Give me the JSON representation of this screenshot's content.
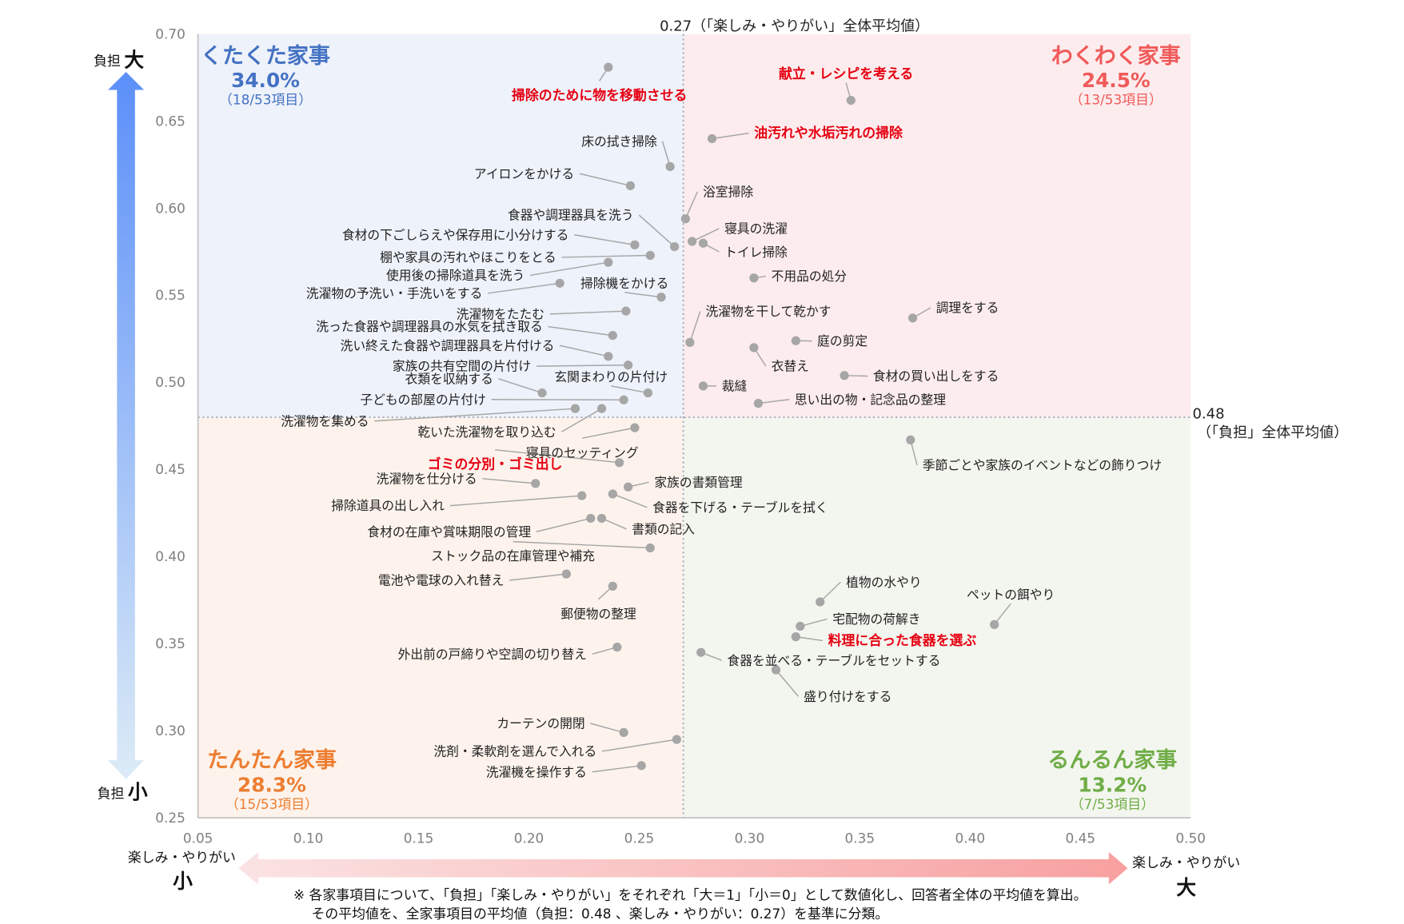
{
  "chart_data": {
    "type": "scatter",
    "title": "",
    "xlabel": "楽しみ・やりがい",
    "ylabel": "負担",
    "xlim": [
      0.05,
      0.5
    ],
    "ylim": [
      0.25,
      0.7
    ],
    "x_ticks": [
      "0.05",
      "0.10",
      "0.15",
      "0.20",
      "0.25",
      "0.30",
      "0.35",
      "0.40",
      "0.45",
      "0.50"
    ],
    "y_ticks": [
      "0.70",
      "0.65",
      "0.60",
      "0.55",
      "0.50",
      "0.45",
      "0.40",
      "0.35",
      "0.30",
      "0.25"
    ],
    "grid": false,
    "averages": {
      "x": 0.27,
      "x_label": "0.27（「楽しみ・やりがい」全体平均値）",
      "y": 0.48,
      "y_value_label": "0.48",
      "y_label": "（「負担」全体平均値）"
    },
    "quadrants": [
      {
        "name": "くたくた家事",
        "percent": "34.0%",
        "count": "（18/53項目）",
        "color": "#4472c4",
        "bg": "#eef2fa"
      },
      {
        "name": "わくわく家事",
        "percent": "24.5%",
        "count": "（13/53項目）",
        "color": "#f05a5a",
        "bg": "#fdeced"
      },
      {
        "name": "たんたん家事",
        "percent": "28.3%",
        "count": "（15/53項目）",
        "color": "#ed7d31",
        "bg": "#fdf3ec"
      },
      {
        "name": "るんるん家事",
        "percent": "13.2%",
        "count": "（7/53項目）",
        "color": "#70ad47",
        "bg": "#f3f6ee"
      }
    ],
    "points": [
      {
        "label": "掃除のために物を移動させる",
        "x": 0.236,
        "y": 0.681,
        "highlight": true
      },
      {
        "label": "献立・レシピを考える",
        "x": 0.346,
        "y": 0.662,
        "highlight": true
      },
      {
        "label": "油汚れや水垢汚れの掃除",
        "x": 0.283,
        "y": 0.64,
        "highlight": true
      },
      {
        "label": "床の拭き掃除",
        "x": 0.264,
        "y": 0.624
      },
      {
        "label": "アイロンをかける",
        "x": 0.246,
        "y": 0.613
      },
      {
        "label": "浴室掃除",
        "x": 0.271,
        "y": 0.594
      },
      {
        "label": "食器や調理器具を洗う",
        "x": 0.266,
        "y": 0.578
      },
      {
        "label": "寝具の洗濯",
        "x": 0.274,
        "y": 0.581
      },
      {
        "label": "トイレ掃除",
        "x": 0.279,
        "y": 0.58
      },
      {
        "label": "食材の下ごしらえや保存用に小分けする",
        "x": 0.248,
        "y": 0.579
      },
      {
        "label": "棚や家具の汚れやほこりをとる",
        "x": 0.255,
        "y": 0.573
      },
      {
        "label": "使用後の掃除道具を洗う",
        "x": 0.236,
        "y": 0.569
      },
      {
        "label": "不用品の処分",
        "x": 0.302,
        "y": 0.56
      },
      {
        "label": "洗濯物の予洗い・手洗いをする",
        "x": 0.214,
        "y": 0.557
      },
      {
        "label": "掃除機をかける",
        "x": 0.26,
        "y": 0.549
      },
      {
        "label": "洗濯物をたたむ",
        "x": 0.244,
        "y": 0.541
      },
      {
        "label": "洗濯物を干して乾かす",
        "x": 0.273,
        "y": 0.523
      },
      {
        "label": "調理をする",
        "x": 0.374,
        "y": 0.537
      },
      {
        "label": "洗った食器や調理器具の水気を拭き取る",
        "x": 0.238,
        "y": 0.527
      },
      {
        "label": "庭の剪定",
        "x": 0.321,
        "y": 0.524
      },
      {
        "label": "衣替え",
        "x": 0.302,
        "y": 0.52
      },
      {
        "label": "洗い終えた食器や調理器具を片付ける",
        "x": 0.236,
        "y": 0.515
      },
      {
        "label": "家族の共有空間の片付け",
        "x": 0.245,
        "y": 0.51
      },
      {
        "label": "食材の買い出しをする",
        "x": 0.343,
        "y": 0.504
      },
      {
        "label": "衣類を収納する",
        "x": 0.206,
        "y": 0.494
      },
      {
        "label": "玄関まわりの片付け",
        "x": 0.254,
        "y": 0.494
      },
      {
        "label": "裁縫",
        "x": 0.279,
        "y": 0.498
      },
      {
        "label": "子どもの部屋の片付け",
        "x": 0.243,
        "y": 0.49
      },
      {
        "label": "思い出の物・記念品の整理",
        "x": 0.304,
        "y": 0.488
      },
      {
        "label": "洗濯物を集める",
        "x": 0.221,
        "y": 0.485
      },
      {
        "label": "乾いた洗濯物を取り込む",
        "x": 0.233,
        "y": 0.485
      },
      {
        "label": "寝具のセッティング",
        "x": 0.248,
        "y": 0.474
      },
      {
        "label": "季節ごとや家族のイベントなどの飾りつけ",
        "x": 0.373,
        "y": 0.467
      },
      {
        "label": "ゴミの分別・ゴミ出し",
        "x": 0.241,
        "y": 0.454,
        "highlight": true
      },
      {
        "label": "洗濯物を仕分ける",
        "x": 0.203,
        "y": 0.442
      },
      {
        "label": "家族の書類管理",
        "x": 0.245,
        "y": 0.44
      },
      {
        "label": "掃除道具の出し入れ",
        "x": 0.224,
        "y": 0.435
      },
      {
        "label": "食器を下げる・テーブルを拭く",
        "x": 0.238,
        "y": 0.436
      },
      {
        "label": "食材の在庫や賞味期限の管理",
        "x": 0.228,
        "y": 0.422
      },
      {
        "label": "書類の記入",
        "x": 0.233,
        "y": 0.422
      },
      {
        "label": "ストック品の在庫管理や補充",
        "x": 0.255,
        "y": 0.405
      },
      {
        "label": "電池や電球の入れ替え",
        "x": 0.217,
        "y": 0.39
      },
      {
        "label": "植物の水やり",
        "x": 0.332,
        "y": 0.374
      },
      {
        "label": "郵便物の整理",
        "x": 0.238,
        "y": 0.383
      },
      {
        "label": "ペットの餌やり",
        "x": 0.411,
        "y": 0.361
      },
      {
        "label": "宅配物の荷解き",
        "x": 0.323,
        "y": 0.36
      },
      {
        "label": "料理に合った食器を選ぶ",
        "x": 0.321,
        "y": 0.354,
        "highlight": true
      },
      {
        "label": "外出前の戸締りや空調の切り替え",
        "x": 0.24,
        "y": 0.348
      },
      {
        "label": "食器を並べる・テーブルをセットする",
        "x": 0.278,
        "y": 0.345
      },
      {
        "label": "盛り付けをする",
        "x": 0.312,
        "y": 0.335
      },
      {
        "label": "カーテンの開閉",
        "x": 0.243,
        "y": 0.299
      },
      {
        "label": "洗剤・柔軟剤を選んで入れる",
        "x": 0.267,
        "y": 0.295
      },
      {
        "label": "洗濯機を操作する",
        "x": 0.251,
        "y": 0.28
      }
    ],
    "y_axis_arrow": {
      "label": "負担",
      "top": "大",
      "bottom": "小",
      "color_top": "#5b8ff9",
      "color_bottom": "#dcebf6"
    },
    "x_axis_arrow": {
      "label": "楽しみ・やりがい",
      "left": "小",
      "right": "大",
      "color_left": "#fbe3e3",
      "color_right": "#f8a0a0"
    },
    "footnote": [
      "※ 各家事項目について、「負担」「楽しみ・やりがい」をそれぞれ「大＝1」「小＝0」として数値化し、回答者全体の平均値を算出。",
      "その平均値を、全家事項目の平均値（負担：0.48 、楽しみ・やりがい：0.27）を基準に分類。"
    ]
  }
}
